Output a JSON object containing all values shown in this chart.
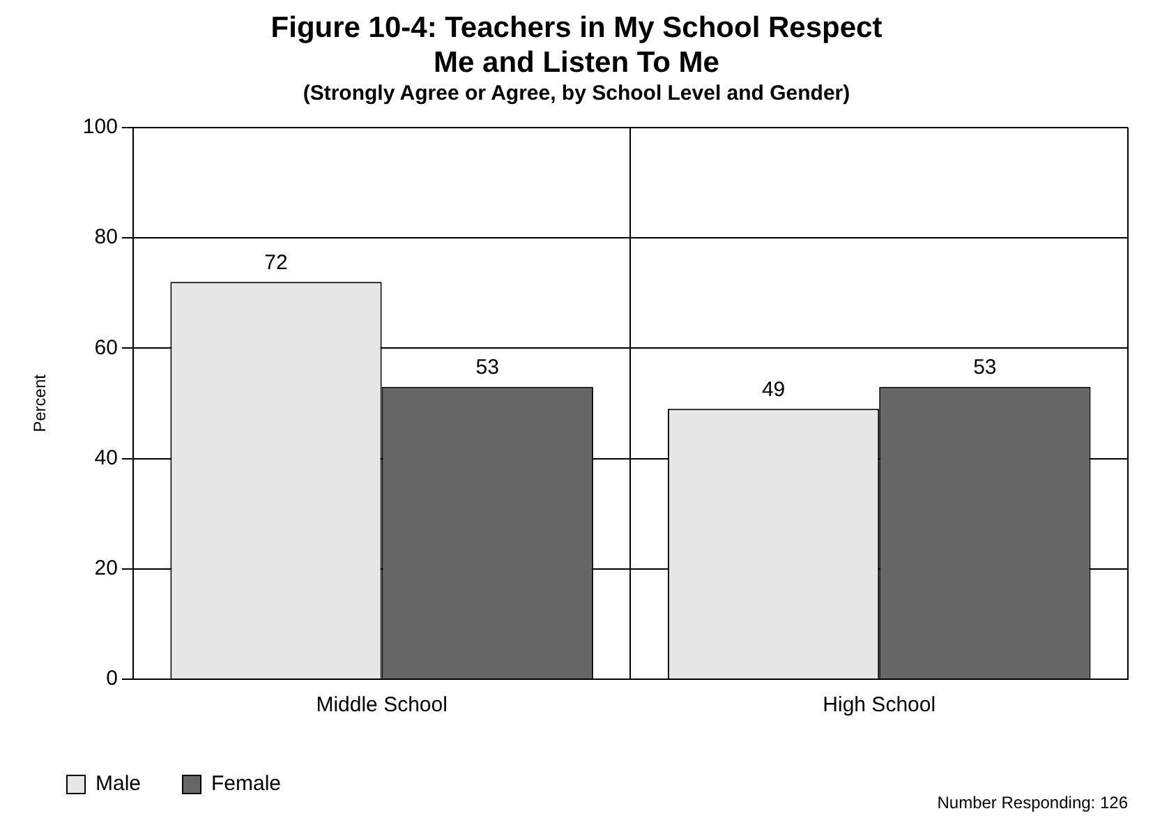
{
  "chart_data": {
    "type": "bar",
    "title": "Figure 10-4: Teachers in My School Respect Me and Listen To Me",
    "subtitle": "(Strongly Agree or Agree, by School Level and Gender)",
    "ylabel": "Percent",
    "categories": [
      "Middle School",
      "High School"
    ],
    "series": [
      {
        "name": "Male",
        "color": "#e6e6e6",
        "values": [
          72,
          49
        ]
      },
      {
        "name": "Female",
        "color": "#666666",
        "values": [
          53,
          53
        ]
      }
    ],
    "ylim": [
      0,
      100
    ],
    "yticks": [
      0,
      20,
      40,
      60,
      80,
      100
    ],
    "grid": "y",
    "legend": "bottom left",
    "data_labels": true,
    "annotations": [
      "Number Responding: 126"
    ]
  }
}
